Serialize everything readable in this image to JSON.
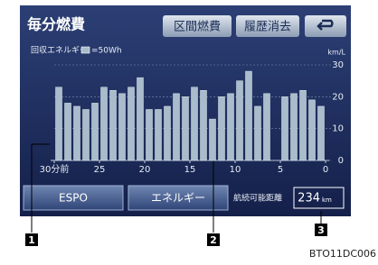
{
  "header": {
    "title": "毎分燃費",
    "buttons": [
      "区間燃費",
      "履歴消去"
    ]
  },
  "chart_data": {
    "type": "bar",
    "legend_label": "回収エネルギー",
    "legend_unit": "=50Wh",
    "y_unit": "km/L",
    "x": [
      30,
      29,
      28,
      27,
      26,
      25,
      24,
      23,
      22,
      21,
      20,
      19,
      18,
      17,
      16,
      15,
      14,
      13,
      12,
      11,
      10,
      9,
      8,
      7,
      6,
      5,
      4,
      3,
      2,
      1
    ],
    "values": [
      23,
      18,
      17,
      16,
      18,
      23,
      22,
      21,
      23,
      26,
      16,
      16,
      17,
      21,
      20,
      23,
      22,
      13,
      20,
      21,
      25,
      28,
      17,
      21,
      null,
      20,
      21,
      22,
      19,
      17
    ],
    "color": "#a9bccb",
    "xlim": [
      30,
      0
    ],
    "xticks": [
      {
        "value": 30,
        "label": "30分前"
      },
      25,
      20,
      15,
      10,
      5,
      0
    ],
    "ylim": [
      0,
      30
    ],
    "yticks": [
      0,
      10,
      20,
      30
    ],
    "grid": true
  },
  "footer": {
    "buttons": [
      "ESPO",
      "エネルギー"
    ],
    "range_label": "航続可能距離",
    "range_value": 234,
    "range_unit": "km"
  },
  "callouts": [
    "1",
    "2",
    "3"
  ],
  "figure_id": "BTO11DC006"
}
